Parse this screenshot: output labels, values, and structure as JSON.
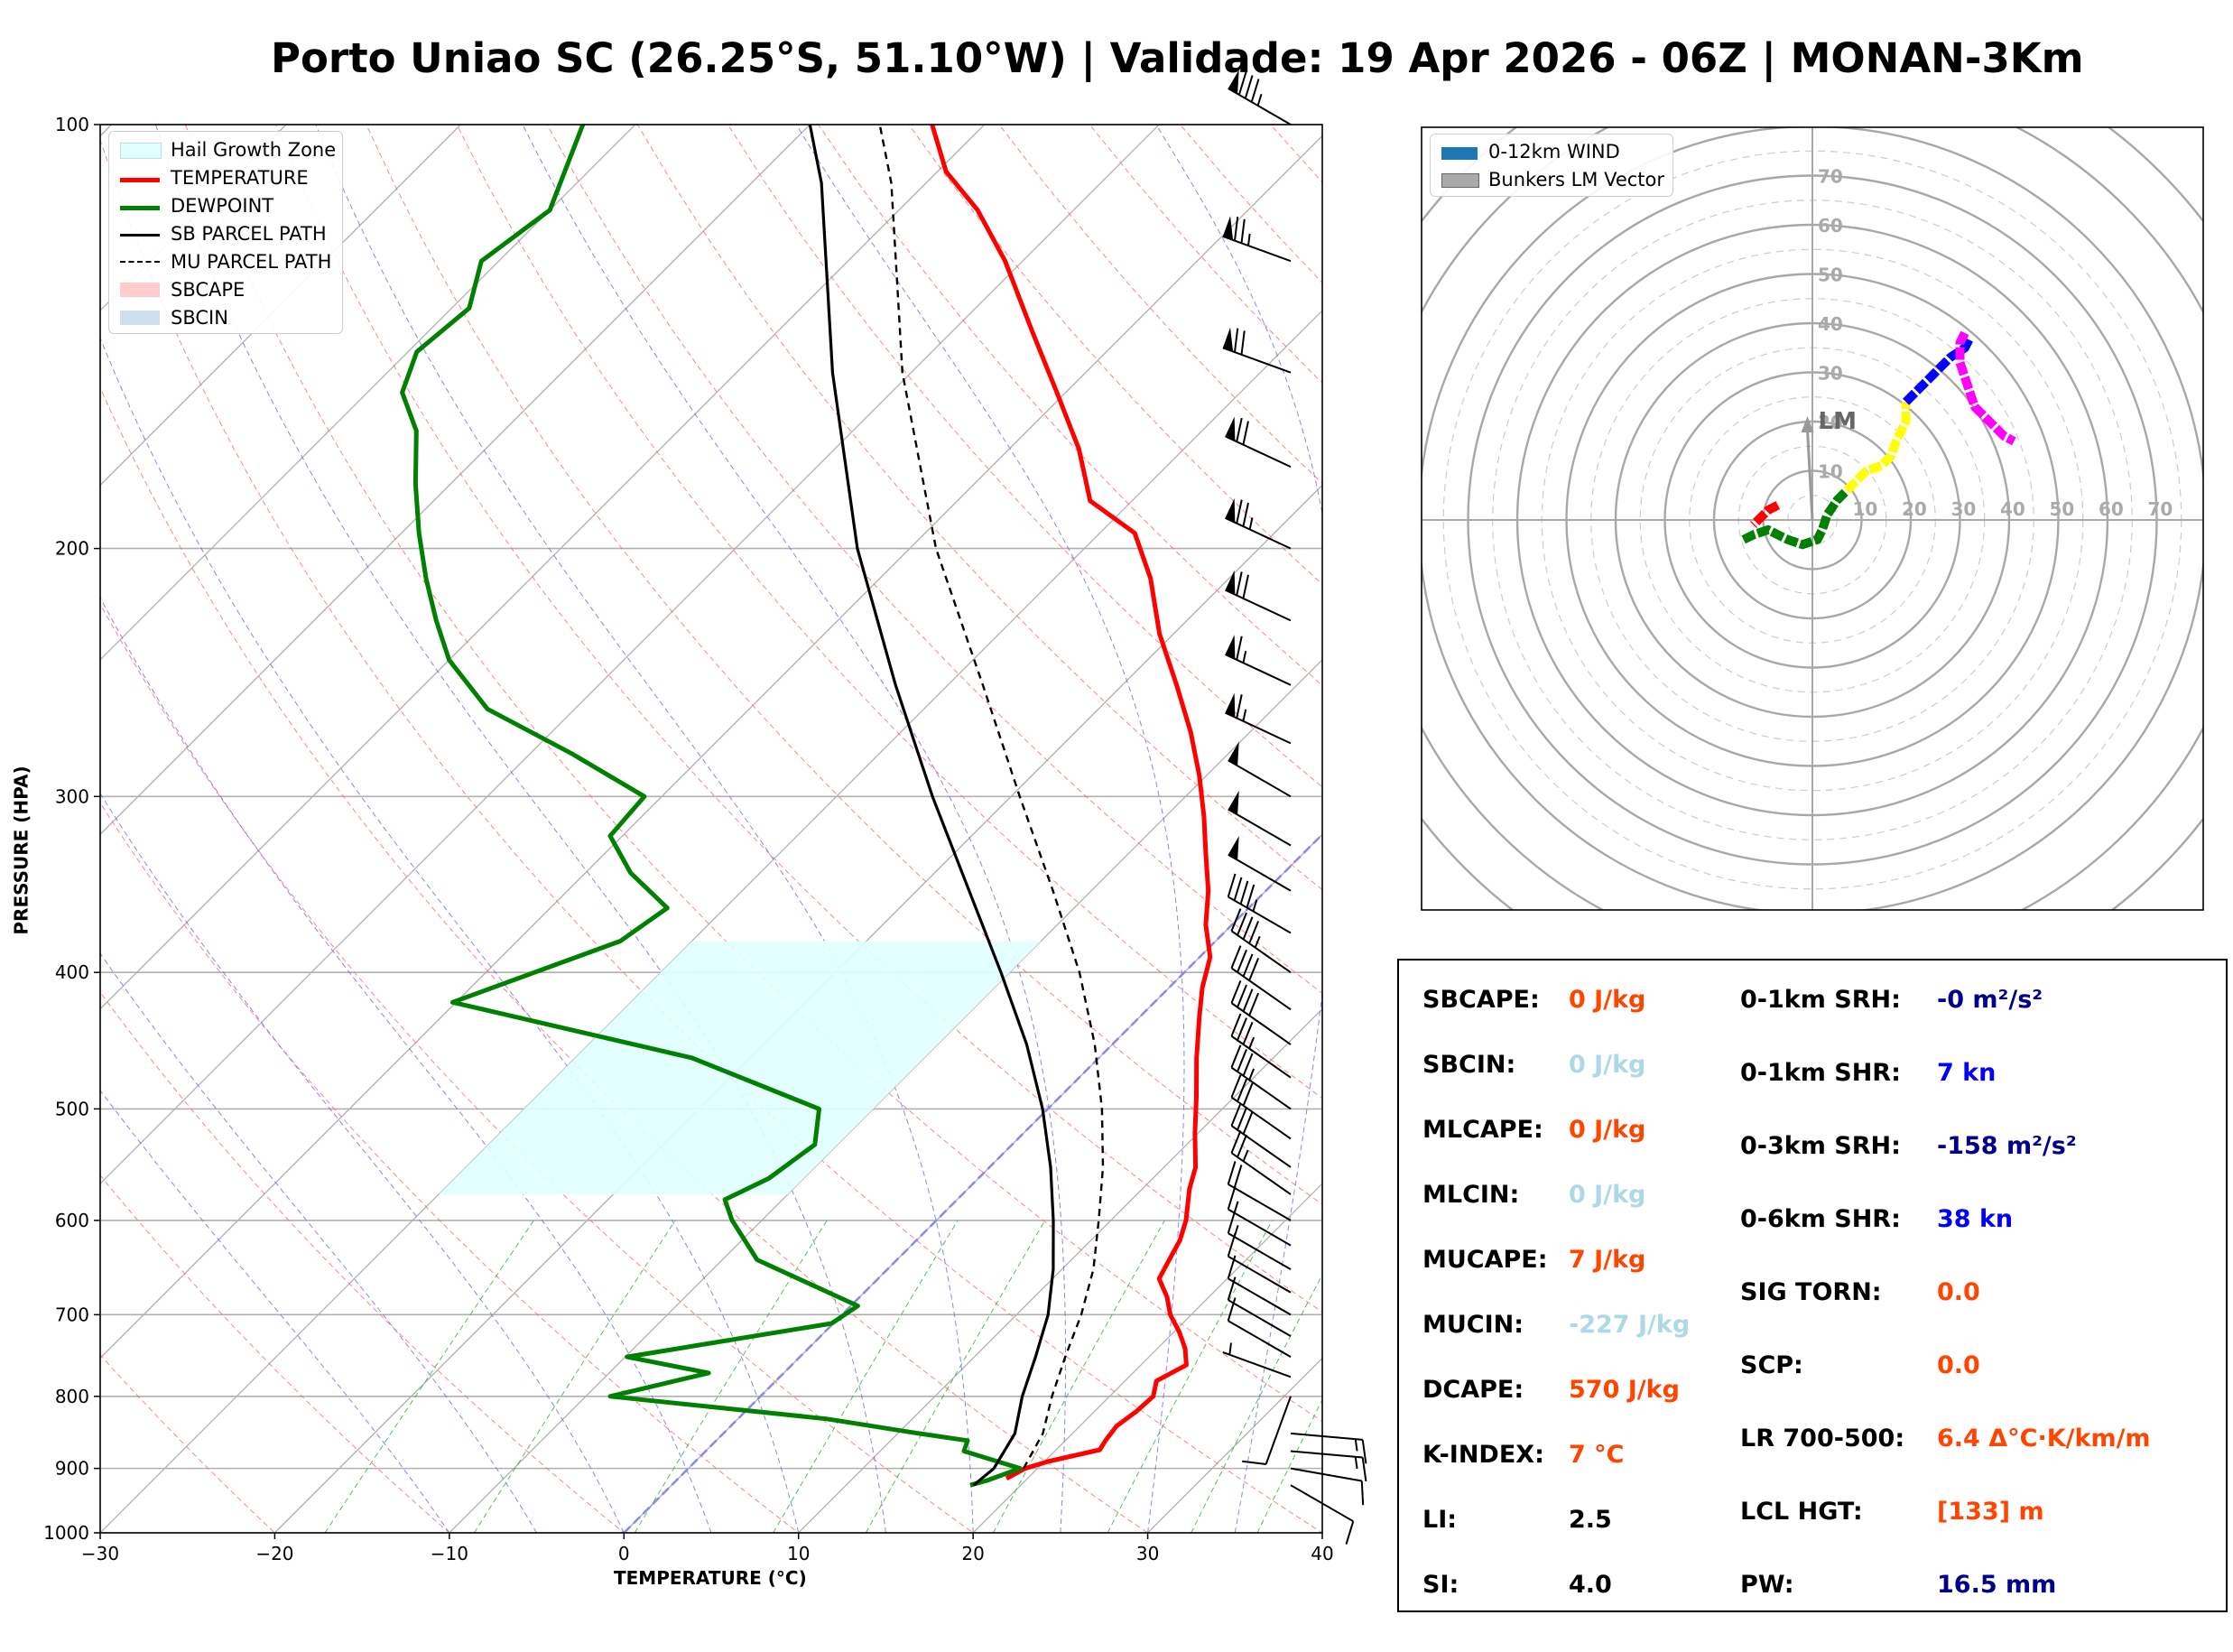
{
  "title": "Porto Uniao SC (26.25°S, 51.10°W) | Validade: 19 Apr 2026 - 06Z | MONAN-3Km",
  "colors": {
    "temperature": "#ff0000",
    "dewpoint": "#008000",
    "parcel": "#000000",
    "hail": "#e0ffff",
    "dry_adiabat": "#ff6666",
    "moist_adiabat": "#6666ff",
    "mixing_ratio": "#33aa33",
    "cape_value": "#ff4500",
    "cin_value": "#add8e6",
    "srh_value": "#00008b",
    "shr_value": "#0000ff"
  },
  "chart_data": [
    {
      "type": "line",
      "subtype": "skew-t log-p",
      "xlabel": "TEMPERATURE (°C)",
      "ylabel": "PRESSURE (HPA)",
      "xlim": [
        -30,
        40
      ],
      "ylim": [
        1000,
        100
      ],
      "x_ticks": [
        "−30",
        "−20",
        "−10",
        "0",
        "10",
        "20",
        "30",
        "40"
      ],
      "y_ticks": [
        "100",
        "200",
        "300",
        "400",
        "500",
        "600",
        "700",
        "800",
        "900",
        "1000"
      ],
      "legend": [
        {
          "label": "Hail Growth Zone",
          "style": "fill",
          "color": "#e0ffff"
        },
        {
          "label": "TEMPERATURE",
          "style": "line",
          "color": "#ff0000"
        },
        {
          "label": "DEWPOINT",
          "style": "line",
          "color": "#008000"
        },
        {
          "label": "SB PARCEL PATH",
          "style": "line",
          "color": "#000000"
        },
        {
          "label": "MU PARCEL PATH",
          "style": "dashed",
          "color": "#000000"
        },
        {
          "label": "SBCAPE",
          "style": "fill",
          "color": "#ffcccc"
        },
        {
          "label": "SBCIN",
          "style": "fill",
          "color": "#cfdff0"
        }
      ],
      "series": [
        {
          "name": "TEMPERATURE",
          "points": [
            [
              18.8,
              915
            ],
            [
              19.3,
              900
            ],
            [
              20.2,
              890
            ],
            [
              22.5,
              873
            ],
            [
              22.3,
              860
            ],
            [
              22.1,
              840
            ],
            [
              22.4,
              820
            ],
            [
              22.5,
              800
            ],
            [
              21.8,
              780
            ],
            [
              22.6,
              760
            ],
            [
              21.6,
              740
            ],
            [
              20.3,
              720
            ],
            [
              18.8,
              700
            ],
            [
              17.6,
              680
            ],
            [
              16.1,
              660
            ],
            [
              15.6,
              640
            ],
            [
              15.1,
              620
            ],
            [
              14.3,
              600
            ],
            [
              12.7,
              570
            ],
            [
              11.8,
              550
            ],
            [
              9.8,
              520
            ],
            [
              7.8,
              490
            ],
            [
              5.6,
              460
            ],
            [
              3.4,
              430
            ],
            [
              1.9,
              410
            ],
            [
              0.6,
              390
            ],
            [
              -1.5,
              370
            ],
            [
              -3.3,
              350
            ],
            [
              -5.5,
              330
            ],
            [
              -7.8,
              310
            ],
            [
              -10.4,
              290
            ],
            [
              -13.4,
              270
            ],
            [
              -16.9,
              250
            ],
            [
              -20.8,
              230
            ],
            [
              -24.5,
              210
            ],
            [
              -28.0,
              195
            ],
            [
              -32.4,
              185
            ],
            [
              -36.0,
              170
            ],
            [
              -40.5,
              155
            ],
            [
              -45.5,
              140
            ],
            [
              -51.0,
              125
            ],
            [
              -55.5,
              115
            ],
            [
              -59.5,
              108
            ],
            [
              -63.0,
              100
            ]
          ]
        },
        {
          "name": "DEWPOINT",
          "points": [
            [
              17.1,
              925
            ],
            [
              17.8,
              918
            ],
            [
              19.0,
              900
            ],
            [
              14.8,
              875
            ],
            [
              14.4,
              860
            ],
            [
              11.2,
              850
            ],
            [
              5.1,
              830
            ],
            [
              -8.6,
              800
            ],
            [
              -4.3,
              770
            ],
            [
              -9.9,
              750
            ],
            [
              -0.1,
              710
            ],
            [
              0.4,
              690
            ],
            [
              -8.0,
              640
            ],
            [
              -11.7,
              600
            ],
            [
              -13.3,
              580
            ],
            [
              -12.0,
              560
            ],
            [
              -11.3,
              530
            ],
            [
              -13.1,
              500
            ],
            [
              -23.3,
              460
            ],
            [
              -40.2,
              420
            ],
            [
              -34.1,
              380
            ],
            [
              -33.3,
              360
            ],
            [
              -37.4,
              340
            ],
            [
              -40.7,
              320
            ],
            [
              -41.0,
              300
            ],
            [
              -47.5,
              280
            ],
            [
              -55.0,
              260
            ],
            [
              -60.0,
              240
            ],
            [
              -63.0,
              225
            ],
            [
              -66.0,
              210
            ],
            [
              -69.0,
              195
            ],
            [
              -72.0,
              180
            ],
            [
              -75.0,
              165
            ],
            [
              -78.0,
              155
            ],
            [
              -79.5,
              145
            ],
            [
              -79.0,
              135
            ],
            [
              -81.0,
              125
            ],
            [
              -80.0,
              115
            ],
            [
              -83.0,
              100
            ]
          ]
        },
        {
          "name": "SB PARCEL PATH",
          "points": [
            [
              17.3,
              925
            ],
            [
              17.5,
              900
            ],
            [
              16.7,
              850
            ],
            [
              15.0,
              800
            ],
            [
              13.5,
              750
            ],
            [
              11.8,
              700
            ],
            [
              9.5,
              650
            ],
            [
              6.7,
              600
            ],
            [
              3.5,
              550
            ],
            [
              -0.3,
              500
            ],
            [
              -4.9,
              450
            ],
            [
              -10.5,
              400
            ],
            [
              -17.0,
              350
            ],
            [
              -24.5,
              300
            ],
            [
              -33.0,
              250
            ],
            [
              -43.0,
              200
            ],
            [
              -54.5,
              150
            ],
            [
              -66.0,
              110
            ],
            [
              -70.0,
              100
            ]
          ]
        },
        {
          "name": "MU PARCEL PATH",
          "points": [
            [
              19.2,
              900
            ],
            [
              18.3,
              850
            ],
            [
              16.7,
              800
            ],
            [
              15.2,
              750
            ],
            [
              13.7,
              700
            ],
            [
              11.8,
              650
            ],
            [
              9.3,
              600
            ],
            [
              6.5,
              550
            ],
            [
              3.1,
              500
            ],
            [
              -1.0,
              450
            ],
            [
              -6.0,
              400
            ],
            [
              -12.2,
              350
            ],
            [
              -19.5,
              300
            ],
            [
              -28.0,
              250
            ],
            [
              -38.5,
              200
            ],
            [
              -50.5,
              150
            ],
            [
              -62.0,
              110
            ],
            [
              -66.0,
              100
            ]
          ]
        }
      ],
      "hail_growth_zone": {
        "p_top": 380,
        "p_bottom": 575,
        "t_cold": -30,
        "t_warm": -10
      },
      "wind_barbs": [
        {
          "p": 100,
          "speed_kt": 85,
          "dir_deg": 300
        },
        {
          "p": 125,
          "speed_kt": 75,
          "dir_deg": 290
        },
        {
          "p": 150,
          "speed_kt": 70,
          "dir_deg": 290
        },
        {
          "p": 175,
          "speed_kt": 70,
          "dir_deg": 295
        },
        {
          "p": 200,
          "speed_kt": 75,
          "dir_deg": 295
        },
        {
          "p": 225,
          "speed_kt": 70,
          "dir_deg": 295
        },
        {
          "p": 250,
          "speed_kt": 65,
          "dir_deg": 295
        },
        {
          "p": 275,
          "speed_kt": 65,
          "dir_deg": 295
        },
        {
          "p": 300,
          "speed_kt": 50,
          "dir_deg": 300
        },
        {
          "p": 325,
          "speed_kt": 50,
          "dir_deg": 300
        },
        {
          "p": 350,
          "speed_kt": 50,
          "dir_deg": 300
        },
        {
          "p": 375,
          "speed_kt": 45,
          "dir_deg": 300
        },
        {
          "p": 400,
          "speed_kt": 45,
          "dir_deg": 305
        },
        {
          "p": 425,
          "speed_kt": 40,
          "dir_deg": 305
        },
        {
          "p": 450,
          "speed_kt": 40,
          "dir_deg": 305
        },
        {
          "p": 475,
          "speed_kt": 35,
          "dir_deg": 305
        },
        {
          "p": 500,
          "speed_kt": 35,
          "dir_deg": 305
        },
        {
          "p": 525,
          "speed_kt": 30,
          "dir_deg": 305
        },
        {
          "p": 550,
          "speed_kt": 30,
          "dir_deg": 305
        },
        {
          "p": 575,
          "speed_kt": 25,
          "dir_deg": 305
        },
        {
          "p": 600,
          "speed_kt": 20,
          "dir_deg": 300
        },
        {
          "p": 625,
          "speed_kt": 15,
          "dir_deg": 300
        },
        {
          "p": 650,
          "speed_kt": 15,
          "dir_deg": 300
        },
        {
          "p": 675,
          "speed_kt": 10,
          "dir_deg": 300
        },
        {
          "p": 700,
          "speed_kt": 10,
          "dir_deg": 300
        },
        {
          "p": 725,
          "speed_kt": 10,
          "dir_deg": 300
        },
        {
          "p": 750,
          "speed_kt": 10,
          "dir_deg": 300
        },
        {
          "p": 775,
          "speed_kt": 5,
          "dir_deg": 290
        },
        {
          "p": 800,
          "speed_kt": 10,
          "dir_deg": 200
        },
        {
          "p": 850,
          "speed_kt": 15,
          "dir_deg": 95
        },
        {
          "p": 875,
          "speed_kt": 15,
          "dir_deg": 95
        },
        {
          "p": 900,
          "speed_kt": 10,
          "dir_deg": 100
        },
        {
          "p": 925,
          "speed_kt": 10,
          "dir_deg": 120
        }
      ]
    },
    {
      "type": "line",
      "subtype": "hodograph",
      "rings": [
        10,
        20,
        30,
        40,
        50,
        60,
        70
      ],
      "ring_labels": [
        "10",
        "20",
        "30",
        "40",
        "50",
        "60",
        "70"
      ],
      "legend": [
        {
          "label": "0-12km WIND",
          "color": "#1f77b4"
        },
        {
          "label": "Bunkers LM Vector",
          "color": "#999999"
        }
      ],
      "bunkers_lm": {
        "u": -1,
        "v": 20,
        "label": "LM"
      },
      "segments": [
        {
          "color": "#ff0000",
          "points": [
            [
              -7,
              3
            ],
            [
              -9,
              2
            ],
            [
              -11,
              0
            ],
            [
              -12,
              -1
            ]
          ]
        },
        {
          "color": "#008000",
          "points": [
            [
              -14,
              -4
            ],
            [
              -12,
              -3
            ],
            [
              -9,
              -2
            ],
            [
              -7,
              -3
            ],
            [
              -5,
              -4
            ],
            [
              -2,
              -5
            ],
            [
              1,
              -4
            ],
            [
              2,
              -2
            ],
            [
              3,
              1
            ],
            [
              5,
              4
            ],
            [
              7,
              6
            ]
          ]
        },
        {
          "color": "#ffff00",
          "points": [
            [
              7,
              6
            ],
            [
              9,
              8
            ],
            [
              11,
              10
            ],
            [
              14,
              11
            ],
            [
              16,
              13
            ],
            [
              17,
              16
            ],
            [
              19,
              20
            ],
            [
              19,
              24
            ]
          ]
        },
        {
          "color": "#0000ff",
          "points": [
            [
              19,
              24
            ],
            [
              22,
              27
            ],
            [
              25,
              30
            ],
            [
              28,
              33
            ],
            [
              31,
              35
            ],
            [
              32,
              37
            ],
            [
              32,
              37
            ]
          ]
        },
        {
          "color": "#ff00ff",
          "points": [
            [
              31,
              38
            ],
            [
              30,
              36
            ],
            [
              30,
              32
            ],
            [
              31,
              29
            ],
            [
              32,
              26
            ],
            [
              33,
              23
            ],
            [
              36,
              20
            ],
            [
              39,
              17
            ],
            [
              41,
              16
            ]
          ]
        }
      ]
    }
  ],
  "indices": {
    "left": [
      {
        "label": "SBCAPE:",
        "value": "0 J/kg",
        "color": "#ff4500"
      },
      {
        "label": "SBCIN:",
        "value": "0 J/kg",
        "color": "#add8e6"
      },
      {
        "label": "MLCAPE:",
        "value": "0 J/kg",
        "color": "#ff4500"
      },
      {
        "label": "MLCIN:",
        "value": "0 J/kg",
        "color": "#add8e6"
      },
      {
        "label": "MUCAPE:",
        "value": "7 J/kg",
        "color": "#ff4500"
      },
      {
        "label": "MUCIN:",
        "value": "-227 J/kg",
        "color": "#add8e6"
      },
      {
        "label": "DCAPE:",
        "value": "570 J/kg",
        "color": "#ff4500"
      },
      {
        "label": "K-INDEX:",
        "value": "7 °C",
        "color": "#ff4500"
      },
      {
        "label": "LI:",
        "value": "2.5",
        "color": "#000000"
      },
      {
        "label": "SI:",
        "value": "4.0",
        "color": "#000000"
      }
    ],
    "right": [
      {
        "label": "0-1km SRH:",
        "value": "-0 m²/s²",
        "color": "#00008b"
      },
      {
        "label": "0-1km SHR:",
        "value": "7 kn",
        "color": "#0000ff"
      },
      {
        "label": "0-3km SRH:",
        "value": "-158 m²/s²",
        "color": "#00008b"
      },
      {
        "label": "0-6km SHR:",
        "value": "38 kn",
        "color": "#0000ff"
      },
      {
        "label": "SIG TORN:",
        "value": "0.0",
        "color": "#ff4500"
      },
      {
        "label": "SCP:",
        "value": "0.0",
        "color": "#ff4500"
      },
      {
        "label": "LR 700-500:",
        "value": "6.4 Δ°C·K/km/m",
        "color": "#ff4500"
      },
      {
        "label": "LCL HGT:",
        "value": "[133] m",
        "color": "#ff4500"
      },
      {
        "label": "PW:",
        "value": "16.5 mm",
        "color": "#00008b"
      }
    ]
  }
}
